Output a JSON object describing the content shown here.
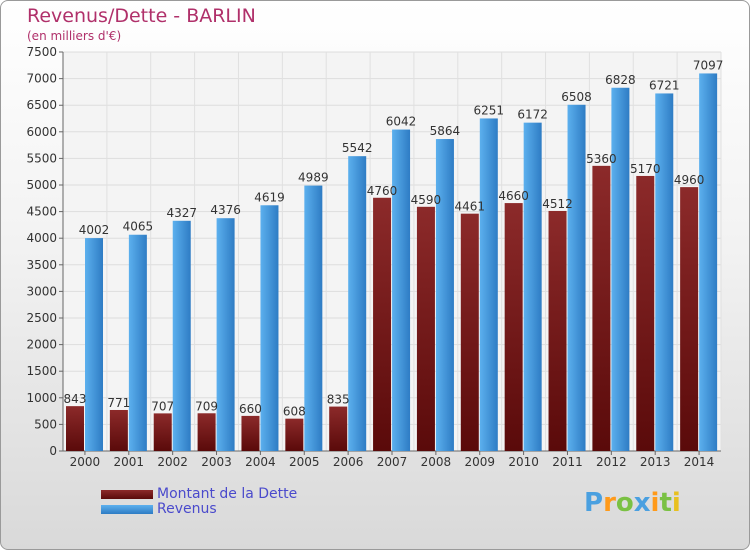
{
  "header": {
    "title": "Revenus/Dette - BARLIN",
    "subtitle": "(en milliers d'€)"
  },
  "colors": {
    "dette": "#7a1a1a",
    "revenus": "#3a95dd",
    "title": "#b0306a",
    "legend_text": "#4a4acc"
  },
  "chart_data": {
    "type": "bar",
    "title": "Revenus/Dette - BARLIN",
    "subtitle": "(en milliers d'€)",
    "categories": [
      "2000",
      "2001",
      "2002",
      "2003",
      "2004",
      "2005",
      "2006",
      "2007",
      "2008",
      "2009",
      "2010",
      "2011",
      "2012",
      "2013",
      "2014"
    ],
    "series": [
      {
        "name": "Montant de la Dette",
        "values": [
          843,
          771,
          707,
          709,
          660,
          608,
          835,
          4760,
          4590,
          4461,
          4660,
          4512,
          5360,
          5170,
          4960
        ],
        "labels": [
          "843",
          "771",
          "707",
          "709",
          "660",
          "608",
          "835",
          "4760",
          "4590",
          "4461",
          "4660",
          "4512",
          "5360",
          "5170",
          "4960"
        ]
      },
      {
        "name": "Revenus",
        "values": [
          4002,
          4065,
          4327,
          4376,
          4619,
          4989,
          5542,
          6042,
          5864,
          6251,
          6172,
          6508,
          6828,
          6721,
          7097
        ],
        "labels": [
          "4002",
          "4065",
          "4327",
          "4376",
          "4619",
          "4989",
          "5542",
          "6042",
          "5864",
          "6251",
          "6172",
          "6508",
          "6828",
          "6721",
          "7097"
        ]
      }
    ],
    "ylim": [
      0,
      7500
    ],
    "yticks": [
      0,
      500,
      1000,
      1500,
      2000,
      2500,
      3000,
      3500,
      4000,
      4500,
      5000,
      5500,
      6000,
      6500,
      7000,
      7500
    ],
    "xlabel": "",
    "ylabel": "",
    "grid": true,
    "legend": "bottom-left"
  },
  "legend": {
    "items": [
      {
        "label": "Montant de la Dette"
      },
      {
        "label": "Revenus"
      }
    ]
  },
  "branding": {
    "letters": [
      "P",
      "r",
      "o",
      "x",
      "i",
      "t",
      "i"
    ],
    "letter_colors": [
      "#4aa0e0",
      "#ff9a1a",
      "#7ac143",
      "#4aa0e0",
      "#ff9a1a",
      "#7ac143",
      "#e8c020"
    ]
  }
}
